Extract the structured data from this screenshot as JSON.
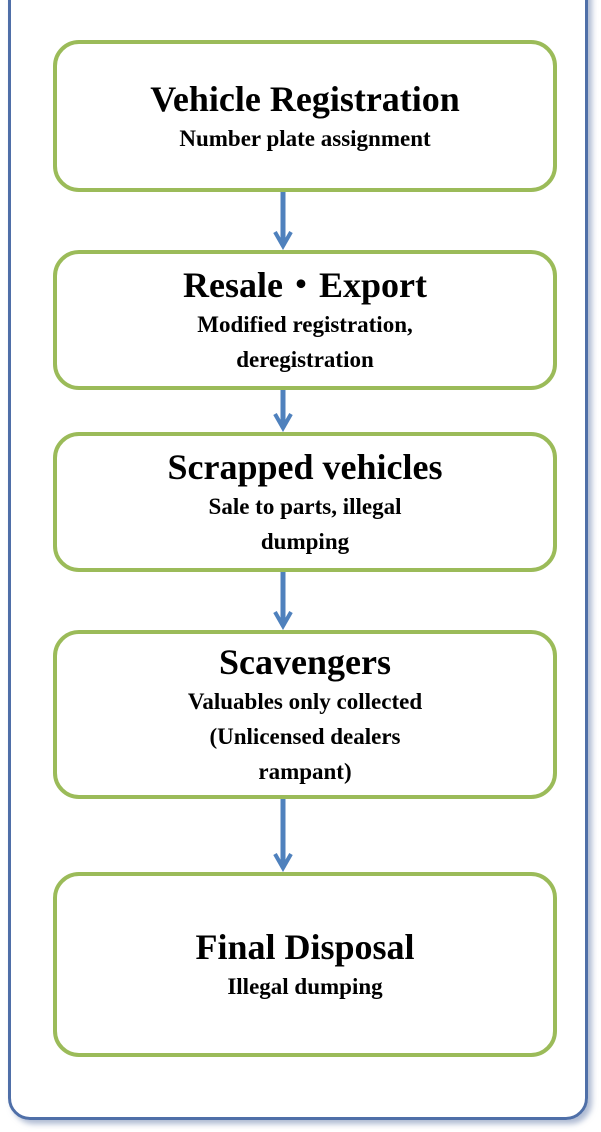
{
  "nodes": [
    {
      "title": "Vehicle Registration",
      "lines": [
        "Number plate assignment"
      ]
    },
    {
      "title": "Resale・Export",
      "lines": [
        "Modified registration,",
        "deregistration"
      ]
    },
    {
      "title": "Scrapped vehicles",
      "lines": [
        "Sale to parts, illegal",
        "dumping"
      ]
    },
    {
      "title": "Scavengers",
      "lines": [
        "Valuables only collected",
        "(Unlicensed dealers",
        "rampant)"
      ]
    },
    {
      "title": "Final Disposal",
      "lines": [
        "Illegal dumping"
      ]
    }
  ]
}
